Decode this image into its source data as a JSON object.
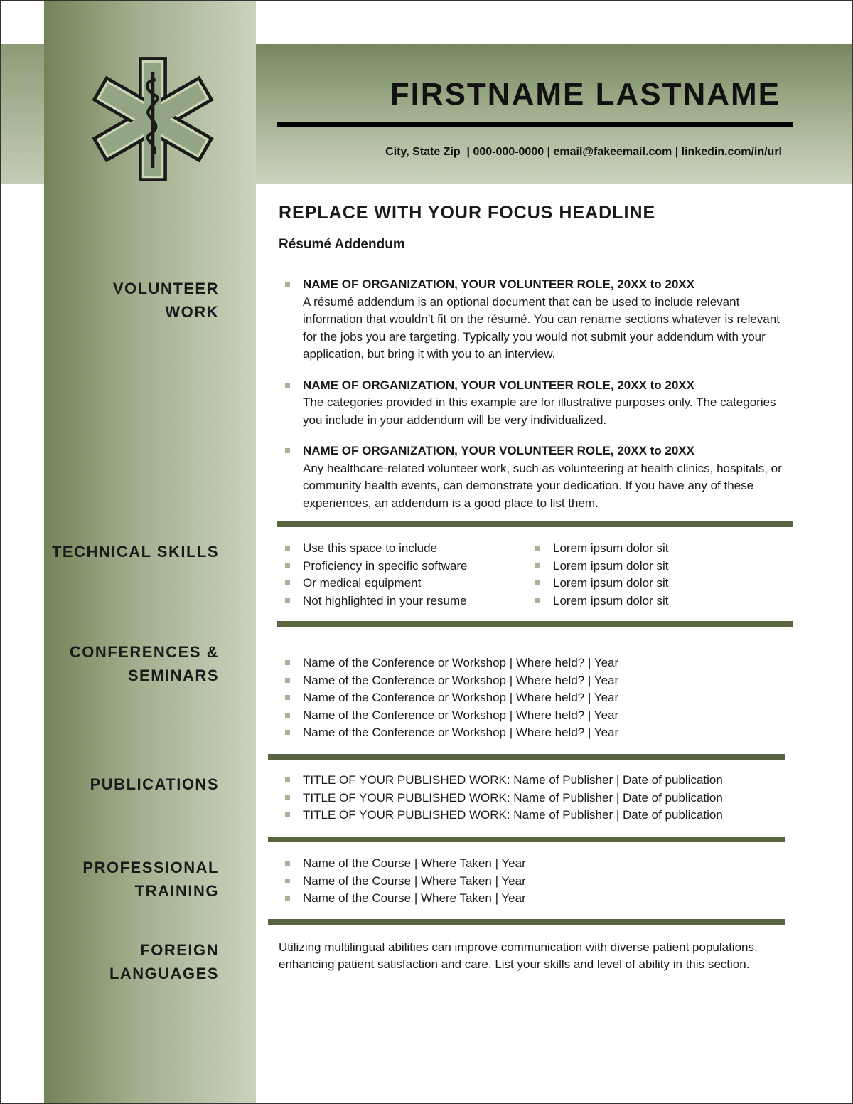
{
  "header": {
    "name": "FIRSTNAME LASTNAME",
    "contact": "City, State Zip  | 000-000-0000 | email@fakeemail.com | linkedin.com/in/url",
    "logo": "star-of-life-icon"
  },
  "headline": "REPLACE WITH YOUR FOCUS HEADLINE",
  "subheadline": "Résumé Addendum",
  "colors": {
    "sidebar_dark": "#728458",
    "sidebar_light": "#c9d3bc",
    "rule": "#58643f",
    "bullet": "#a6b395"
  },
  "sections": {
    "volunteer": {
      "title1": "VOLUNTEER",
      "title2": "WORK",
      "items": [
        {
          "heading": "NAME OF ORGANIZATION, YOUR VOLUNTEER ROLE, 20XX to 20XX",
          "text": "A résumé addendum is an optional document that can be used to include relevant information that wouldn’t fit on the résumé. You can rename sections whatever is relevant for the jobs you are targeting. Typically you would not submit your addendum with your application, but bring it with you to an interview."
        },
        {
          "heading": "NAME OF ORGANIZATION, YOUR VOLUNTEER ROLE, 20XX to 20XX",
          "text": "The categories provided in this example are for illustrative purposes only. The categories you include in your addendum will be very individualized."
        },
        {
          "heading": "NAME OF ORGANIZATION, YOUR VOLUNTEER ROLE, 20XX to 20XX",
          "text": "Any healthcare-related volunteer work, such as volunteering at health clinics, hospitals, or community health events, can demonstrate your dedication. If you have any of these experiences, an addendum is a good place to list them."
        }
      ]
    },
    "technical": {
      "title1": "TECHNICAL SKILLS",
      "col1": [
        "Use this space to include",
        "Proficiency in specific software",
        "Or medical equipment",
        "Not highlighted in your resume"
      ],
      "col2": [
        "Lorem ipsum dolor sit",
        "Lorem ipsum dolor sit",
        "Lorem ipsum dolor sit",
        "Lorem ipsum dolor sit"
      ]
    },
    "conferences": {
      "title1": "CONFERENCES &",
      "title2": "SEMINARS",
      "items": [
        "Name of the Conference or Workshop | Where held? | Year",
        "Name of the Conference or Workshop | Where held? | Year",
        "Name of the Conference or Workshop | Where held? | Year",
        "Name of the Conference or Workshop | Where held? | Year",
        "Name of the Conference or Workshop | Where held? | Year"
      ]
    },
    "publications": {
      "title1": "PUBLICATIONS",
      "items": [
        "TITLE OF YOUR PUBLISHED WORK: Name of Publisher | Date of publication",
        "TITLE OF YOUR PUBLISHED WORK: Name of Publisher | Date of publication",
        "TITLE OF YOUR PUBLISHED WORK: Name of Publisher | Date of publication"
      ]
    },
    "training": {
      "title1": "PROFESSIONAL",
      "title2": "TRAINING",
      "items": [
        "Name of the Course | Where Taken | Year",
        "Name of the Course | Where Taken | Year",
        "Name of the Course | Where Taken | Year"
      ]
    },
    "languages": {
      "title1": "FOREIGN",
      "title2": "LANGUAGES",
      "text": "Utilizing multilingual abilities can improve communication with diverse patient populations, enhancing patient satisfaction and care. List your skills and level of ability in this section."
    }
  }
}
